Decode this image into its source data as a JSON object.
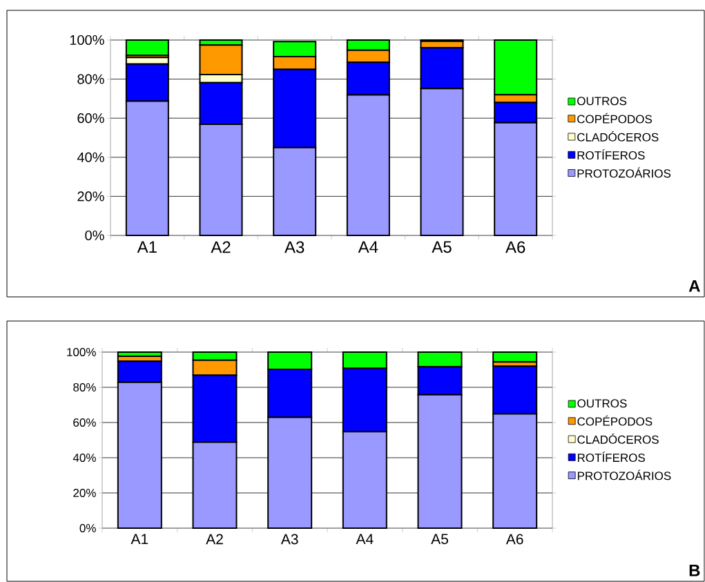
{
  "chart_data": [
    {
      "type": "bar",
      "stacked": true,
      "categories": [
        "A1",
        "A2",
        "A3",
        "A4",
        "A5",
        "A6"
      ],
      "series": [
        {
          "name": "PROTOZOÁRIOS",
          "color": "#9999ff",
          "values": [
            68.7,
            56.9,
            45.0,
            71.9,
            75.2,
            57.7
          ]
        },
        {
          "name": "ROTÍFEROS",
          "color": "#0000ff",
          "values": [
            19.0,
            21.3,
            40.0,
            16.7,
            20.8,
            10.3
          ]
        },
        {
          "name": "CLADÓCEROS",
          "color": "#ffffcc",
          "values": [
            3.4,
            4.1,
            null,
            0,
            0,
            0
          ]
        },
        {
          "name": "COPÉPODOS",
          "color": "#ff9900",
          "values": [
            1.0,
            15.1,
            6.5,
            6.2,
            3.4,
            4.0
          ]
        },
        {
          "name": "OUTROS",
          "color": "#00ff00",
          "values": [
            7.9,
            2.6,
            7.7,
            5.2,
            0.6,
            28.0
          ]
        }
      ],
      "ylim": [
        0,
        100
      ],
      "yticks": [
        {
          "value": 0,
          "label": "0%"
        },
        {
          "value": 20,
          "label": "20%"
        },
        {
          "value": 40,
          "label": "40%"
        },
        {
          "value": 60,
          "label": "60%"
        },
        {
          "value": 80,
          "label": "80%"
        },
        {
          "value": 100,
          "label": "100%"
        }
      ],
      "grid": "y",
      "legend": "right",
      "annotations": [
        "A"
      ]
    },
    {
      "type": "bar",
      "stacked": true,
      "categories": [
        "A1",
        "A2",
        "A3",
        "A4",
        "A5",
        "A6"
      ],
      "series": [
        {
          "name": "PROTOZOÁRIOS",
          "color": "#9999ff",
          "values": [
            82.8,
            48.8,
            62.9,
            54.8,
            75.8,
            64.9
          ]
        },
        {
          "name": "ROTÍFEROS",
          "color": "#0000ff",
          "values": [
            12.0,
            38.1,
            27.3,
            36.0,
            15.9,
            27.1
          ]
        },
        {
          "name": "CLADÓCEROS",
          "color": "#ffffcc",
          "values": [
            0,
            0,
            0,
            0,
            0,
            0
          ]
        },
        {
          "name": "COPÉPODOS",
          "color": "#ff9900",
          "values": [
            2.8,
            8.5,
            0,
            0,
            0,
            2.4
          ]
        },
        {
          "name": "OUTROS",
          "color": "#00ff00",
          "values": [
            2.4,
            4.6,
            9.8,
            9.2,
            8.3,
            5.6
          ]
        }
      ],
      "ylim": [
        0,
        100
      ],
      "yticks": [
        {
          "value": 0,
          "label": "0%"
        },
        {
          "value": 20,
          "label": "20%"
        },
        {
          "value": 40,
          "label": "40%"
        },
        {
          "value": 60,
          "label": "60%"
        },
        {
          "value": 80,
          "label": "80%"
        },
        {
          "value": 100,
          "label": "100%"
        }
      ],
      "grid": "y",
      "legend": "right",
      "annotations": [
        "B"
      ]
    }
  ]
}
